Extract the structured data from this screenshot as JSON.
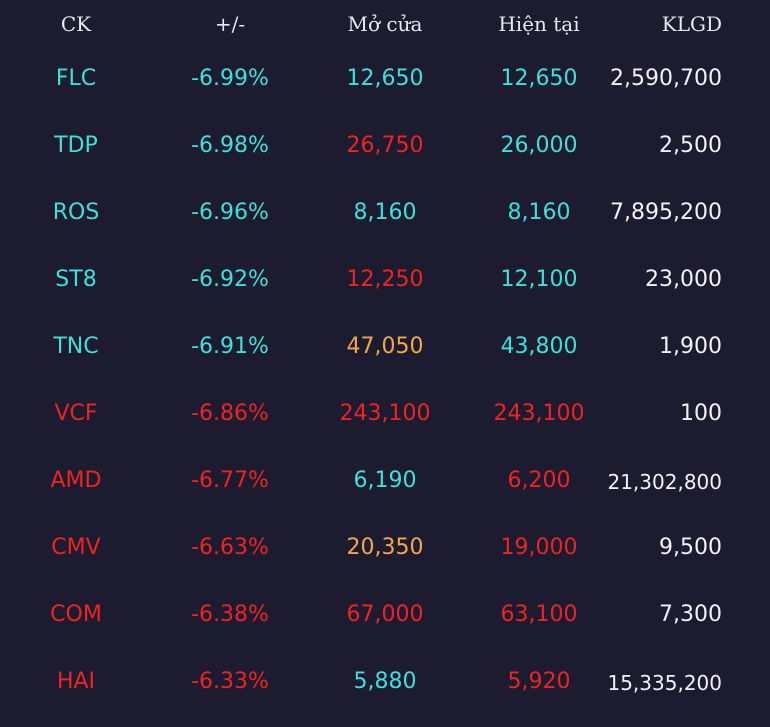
{
  "header": {
    "ck": "CK",
    "change": "+/-",
    "open": "Mở cửa",
    "current": "Hiện tại",
    "volume": "KLGD"
  },
  "colors": {
    "background": "#1c1b2f",
    "cyan": "#3ee0d8",
    "red": "#ee2424",
    "orange": "#f2a84a",
    "white": "#f2f2f5"
  },
  "rows": [
    {
      "ck": "FLC",
      "ck_color": "cyan",
      "change": "-6.99%",
      "change_color": "cyan",
      "open": "12,650",
      "open_color": "cyan",
      "current": "12,650",
      "current_color": "cyan",
      "volume": "2,590,700"
    },
    {
      "ck": "TDP",
      "ck_color": "cyan",
      "change": "-6.98%",
      "change_color": "cyan",
      "open": "26,750",
      "open_color": "red",
      "current": "26,000",
      "current_color": "cyan",
      "volume": "2,500"
    },
    {
      "ck": "ROS",
      "ck_color": "cyan",
      "change": "-6.96%",
      "change_color": "cyan",
      "open": "8,160",
      "open_color": "cyan",
      "current": "8,160",
      "current_color": "cyan",
      "volume": "7,895,200"
    },
    {
      "ck": "ST8",
      "ck_color": "cyan",
      "change": "-6.92%",
      "change_color": "cyan",
      "open": "12,250",
      "open_color": "red",
      "current": "12,100",
      "current_color": "cyan",
      "volume": "23,000"
    },
    {
      "ck": "TNC",
      "ck_color": "cyan",
      "change": "-6.91%",
      "change_color": "cyan",
      "open": "47,050",
      "open_color": "orange",
      "current": "43,800",
      "current_color": "cyan",
      "volume": "1,900"
    },
    {
      "ck": "VCF",
      "ck_color": "red",
      "change": "-6.86%",
      "change_color": "red",
      "open": "243,100",
      "open_color": "red",
      "current": "243,100",
      "current_color": "red",
      "volume": "100"
    },
    {
      "ck": "AMD",
      "ck_color": "red",
      "change": "-6.77%",
      "change_color": "red",
      "open": "6,190",
      "open_color": "cyan",
      "current": "6,200",
      "current_color": "red",
      "volume": "21,302,800"
    },
    {
      "ck": "CMV",
      "ck_color": "red",
      "change": "-6.63%",
      "change_color": "red",
      "open": "20,350",
      "open_color": "orange",
      "current": "19,000",
      "current_color": "red",
      "volume": "9,500"
    },
    {
      "ck": "COM",
      "ck_color": "red",
      "change": "-6.38%",
      "change_color": "red",
      "open": "67,000",
      "open_color": "red",
      "current": "63,100",
      "current_color": "red",
      "volume": "7,300"
    },
    {
      "ck": "HAI",
      "ck_color": "red",
      "change": "-6.33%",
      "change_color": "red",
      "open": "5,880",
      "open_color": "cyan",
      "current": "5,920",
      "current_color": "red",
      "volume": "15,335,200"
    }
  ]
}
